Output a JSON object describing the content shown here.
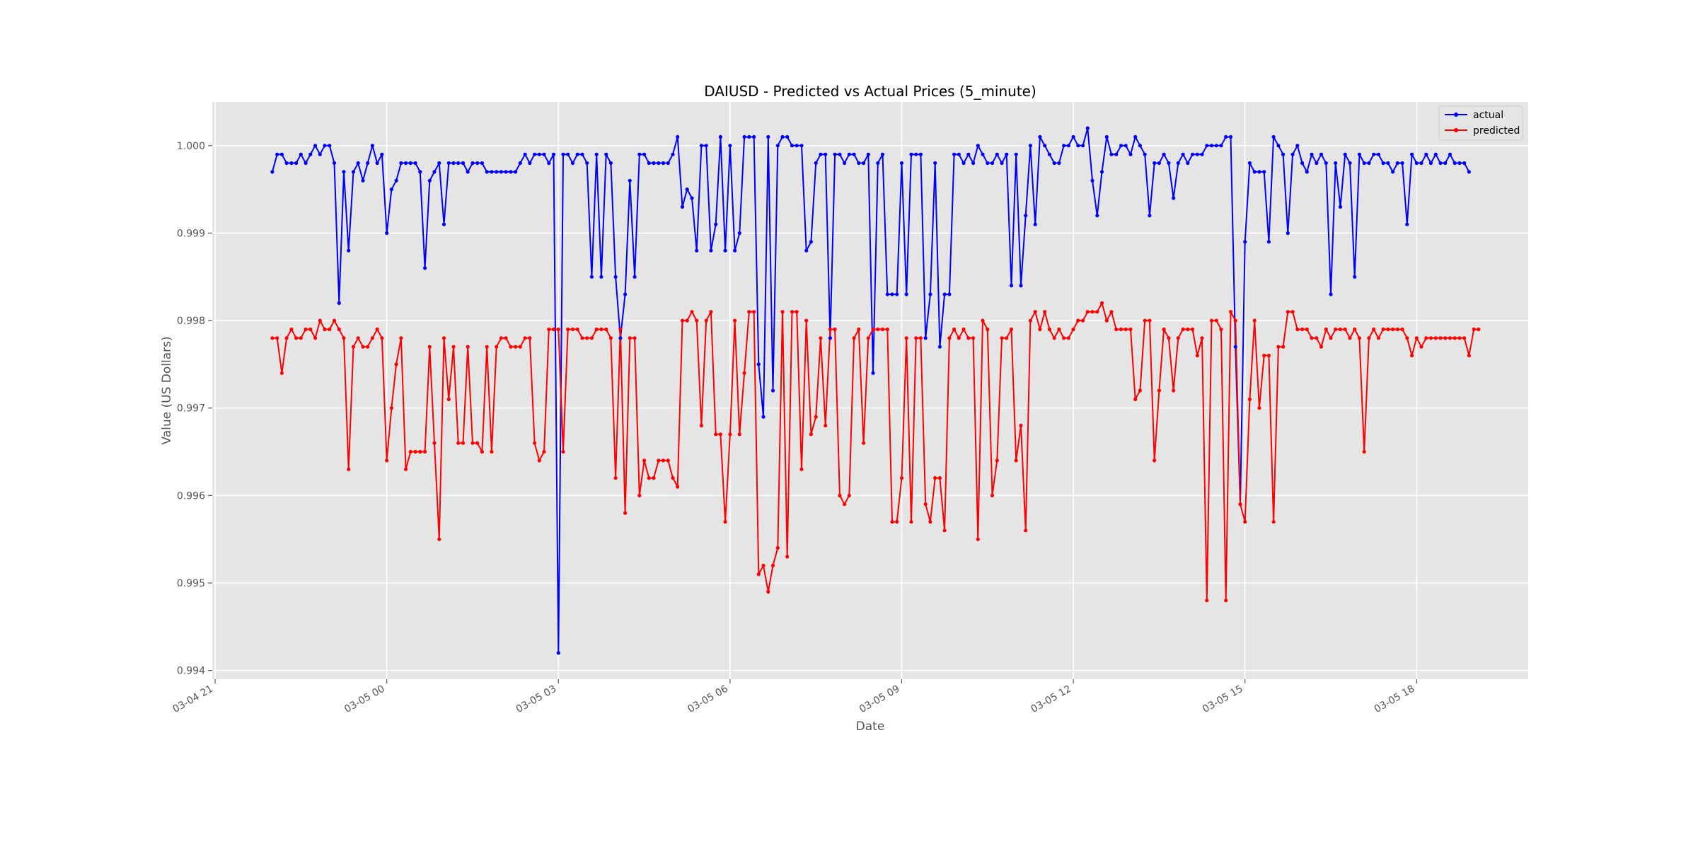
{
  "chart_data": {
    "type": "line",
    "title": "DAIUSD - Predicted vs Actual Prices (5_minute)",
    "xlabel": "Date",
    "ylabel": "Value (US Dollars)",
    "x_tick_labels": [
      "03-04 21",
      "03-05 00",
      "03-05 03",
      "03-05 06",
      "03-05 09",
      "03-05 12",
      "03-05 15",
      "03-05 18"
    ],
    "y_ticks": [
      0.994,
      0.995,
      0.996,
      0.997,
      0.998,
      0.999,
      1.0
    ],
    "y_tick_labels": [
      "0.994",
      "0.995",
      "0.996",
      "0.997",
      "0.998",
      "0.999",
      "1.000"
    ],
    "ylim": [
      0.9939,
      1.0005
    ],
    "xlim_hours": [
      -0.05,
      22.95
    ],
    "x_start_hour": 1,
    "x_step_hours": 0.0833333,
    "grid": true,
    "legend": "top-right",
    "series": [
      {
        "name": "actual",
        "color": "#0000ff",
        "values": [
          0.9997,
          0.9999,
          0.9999,
          0.9998,
          0.9998,
          0.9998,
          0.9999,
          0.9998,
          0.9999,
          1.0,
          0.9999,
          1.0,
          1.0,
          0.9998,
          0.9982,
          0.9997,
          0.9988,
          0.9997,
          0.9998,
          0.9996,
          0.9998,
          1.0,
          0.9998,
          0.9999,
          0.999,
          0.9995,
          0.9996,
          0.9998,
          0.9998,
          0.9998,
          0.9998,
          0.9997,
          0.9986,
          0.9996,
          0.9997,
          0.9998,
          0.9991,
          0.9998,
          0.9998,
          0.9998,
          0.9998,
          0.9997,
          0.9998,
          0.9998,
          0.9998,
          0.9997,
          0.9997,
          0.9997,
          0.9997,
          0.9997,
          0.9997,
          0.9997,
          0.9998,
          0.9999,
          0.9998,
          0.9999,
          0.9999,
          0.9999,
          0.9998,
          0.9999,
          0.9942,
          0.9999,
          0.9999,
          0.9998,
          0.9999,
          0.9999,
          0.9998,
          0.9985,
          0.9999,
          0.9985,
          0.9999,
          0.9998,
          0.9985,
          0.9978,
          0.9983,
          0.9996,
          0.9985,
          0.9999,
          0.9999,
          0.9998,
          0.9998,
          0.9998,
          0.9998,
          0.9998,
          0.9999,
          1.0001,
          0.9993,
          0.9995,
          0.9994,
          0.9988,
          1.0,
          1.0,
          0.9988,
          0.9991,
          1.0001,
          0.9988,
          1.0,
          0.9988,
          0.999,
          1.0001,
          1.0001,
          1.0001,
          0.9975,
          0.9969,
          1.0001,
          0.9972,
          1.0,
          1.0001,
          1.0001,
          1.0,
          1.0,
          1.0,
          0.9988,
          0.9989,
          0.9998,
          0.9999,
          0.9999,
          0.9978,
          0.9999,
          0.9999,
          0.9998,
          0.9999,
          0.9999,
          0.9998,
          0.9998,
          0.9999,
          0.9974,
          0.9998,
          0.9999,
          0.9983,
          0.9983,
          0.9983,
          0.9998,
          0.9983,
          0.9999,
          0.9999,
          0.9999,
          0.9978,
          0.9983,
          0.9998,
          0.9977,
          0.9983,
          0.9983,
          0.9999,
          0.9999,
          0.9998,
          0.9999,
          0.9998,
          1.0,
          0.9999,
          0.9998,
          0.9998,
          0.9999,
          0.9998,
          0.9999,
          0.9984,
          0.9999,
          0.9984,
          0.9992,
          1.0,
          0.9991,
          1.0001,
          1.0,
          0.9999,
          0.9998,
          0.9998,
          1.0,
          1.0,
          1.0001,
          1.0,
          1.0,
          1.0002,
          0.9996,
          0.9992,
          0.9997,
          1.0001,
          0.9999,
          0.9999,
          1.0,
          1.0,
          0.9999,
          1.0001,
          1.0,
          0.9999,
          0.9992,
          0.9998,
          0.9998,
          0.9999,
          0.9998,
          0.9994,
          0.9998,
          0.9999,
          0.9998,
          0.9999,
          0.9999,
          0.9999,
          1.0,
          1.0,
          1.0,
          1.0,
          1.0001,
          1.0001,
          0.9977,
          0.9959,
          0.9989,
          0.9998,
          0.9997,
          0.9997,
          0.9997,
          0.9989,
          1.0001,
          1.0,
          0.9999,
          0.999,
          0.9999,
          1.0,
          0.9998,
          0.9997,
          0.9999,
          0.9998,
          0.9999,
          0.9998,
          0.9983,
          0.9998,
          0.9993,
          0.9999,
          0.9998,
          0.9985,
          0.9999,
          0.9998,
          0.9998,
          0.9999,
          0.9999,
          0.9998,
          0.9998,
          0.9997,
          0.9998,
          0.9998,
          0.9991,
          0.9999,
          0.9998,
          0.9998,
          0.9999,
          0.9998,
          0.9999,
          0.9998,
          0.9998,
          0.9999,
          0.9998,
          0.9998,
          0.9998,
          0.9997
        ]
      },
      {
        "name": "predicted",
        "color": "#ff0000",
        "values": [
          0.9978,
          0.9978,
          0.9974,
          0.9978,
          0.9979,
          0.9978,
          0.9978,
          0.9979,
          0.9979,
          0.9978,
          0.998,
          0.9979,
          0.9979,
          0.998,
          0.9979,
          0.9978,
          0.9963,
          0.9977,
          0.9978,
          0.9977,
          0.9977,
          0.9978,
          0.9979,
          0.9978,
          0.9964,
          0.997,
          0.9975,
          0.9978,
          0.9963,
          0.9965,
          0.9965,
          0.9965,
          0.9965,
          0.9977,
          0.9966,
          0.9955,
          0.9978,
          0.9971,
          0.9977,
          0.9966,
          0.9966,
          0.9977,
          0.9966,
          0.9966,
          0.9965,
          0.9977,
          0.9965,
          0.9977,
          0.9978,
          0.9978,
          0.9977,
          0.9977,
          0.9977,
          0.9978,
          0.9978,
          0.9966,
          0.9964,
          0.9965,
          0.9979,
          0.9979,
          0.9979,
          0.9965,
          0.9979,
          0.9979,
          0.9979,
          0.9978,
          0.9978,
          0.9978,
          0.9979,
          0.9979,
          0.9979,
          0.9978,
          0.9962,
          0.9979,
          0.9958,
          0.9978,
          0.9978,
          0.996,
          0.9964,
          0.9962,
          0.9962,
          0.9964,
          0.9964,
          0.9964,
          0.9962,
          0.9961,
          0.998,
          0.998,
          0.9981,
          0.998,
          0.9968,
          0.998,
          0.9981,
          0.9967,
          0.9967,
          0.9957,
          0.9967,
          0.998,
          0.9967,
          0.9974,
          0.9981,
          0.9981,
          0.9951,
          0.9952,
          0.9949,
          0.9952,
          0.9954,
          0.9981,
          0.9953,
          0.9981,
          0.9981,
          0.9963,
          0.998,
          0.9967,
          0.9969,
          0.9978,
          0.9968,
          0.9979,
          0.9979,
          0.996,
          0.9959,
          0.996,
          0.9978,
          0.9979,
          0.9966,
          0.9978,
          0.9979,
          0.9979,
          0.9979,
          0.9979,
          0.9957,
          0.9957,
          0.9962,
          0.9978,
          0.9957,
          0.9978,
          0.9978,
          0.9959,
          0.9957,
          0.9962,
          0.9962,
          0.9956,
          0.9978,
          0.9979,
          0.9978,
          0.9979,
          0.9978,
          0.9978,
          0.9955,
          0.998,
          0.9979,
          0.996,
          0.9964,
          0.9978,
          0.9978,
          0.9979,
          0.9964,
          0.9968,
          0.9956,
          0.998,
          0.9981,
          0.9979,
          0.9981,
          0.9979,
          0.9978,
          0.9979,
          0.9978,
          0.9978,
          0.9979,
          0.998,
          0.998,
          0.9981,
          0.9981,
          0.9981,
          0.9982,
          0.998,
          0.9981,
          0.9979,
          0.9979,
          0.9979,
          0.9979,
          0.9971,
          0.9972,
          0.998,
          0.998,
          0.9964,
          0.9972,
          0.9979,
          0.9978,
          0.9972,
          0.9978,
          0.9979,
          0.9979,
          0.9979,
          0.9976,
          0.9978,
          0.9948,
          0.998,
          0.998,
          0.9979,
          0.9948,
          0.9981,
          0.998,
          0.9959,
          0.9957,
          0.9971,
          0.998,
          0.997,
          0.9976,
          0.9976,
          0.9957,
          0.9977,
          0.9977,
          0.9981,
          0.9981,
          0.9979,
          0.9979,
          0.9979,
          0.9978,
          0.9978,
          0.9977,
          0.9979,
          0.9978,
          0.9979,
          0.9979,
          0.9979,
          0.9978,
          0.9979,
          0.9978,
          0.9965,
          0.9978,
          0.9979,
          0.9978,
          0.9979,
          0.9979,
          0.9979,
          0.9979,
          0.9979,
          0.9978,
          0.9976,
          0.9978,
          0.9977,
          0.9978,
          0.9978,
          0.9978,
          0.9978,
          0.9978,
          0.9978,
          0.9978,
          0.9978,
          0.9978,
          0.9976,
          0.9979,
          0.9979
        ]
      }
    ]
  }
}
